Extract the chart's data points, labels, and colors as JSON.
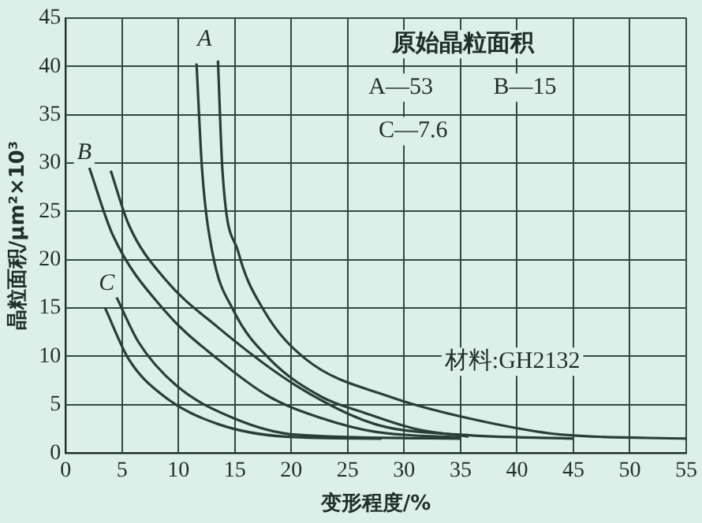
{
  "chart_data": {
    "type": "line",
    "xlabel": "变形程度/%",
    "ylabel": "晶粒面积/μm²×10³",
    "xlim": [
      0,
      55
    ],
    "xticks": [
      0,
      5,
      10,
      15,
      20,
      25,
      30,
      35,
      40,
      45,
      50,
      55
    ],
    "ylim": [
      0,
      45
    ],
    "yticks": [
      0,
      5,
      10,
      15,
      20,
      25,
      30,
      35,
      40,
      45
    ],
    "grid": true,
    "legend": false,
    "marker": "none",
    "line_style": "solid",
    "series": [
      {
        "color": "#2a3d36",
        "x": [
          11.6,
          12.1,
          13.0,
          14.9,
          18.1,
          22.7,
          26.4,
          31,
          35.7
        ],
        "values": [
          40.3,
          29.2,
          20.8,
          14.7,
          9.7,
          5.8,
          4.2,
          2.5,
          1.7
        ]
      },
      {
        "color": "#2a3d36",
        "x": [
          13.5,
          13.9,
          15.3,
          17.6,
          21.3,
          28.8,
          35.7,
          44,
          55
        ],
        "values": [
          40.6,
          29.2,
          20.8,
          14.7,
          9.7,
          5.8,
          3.6,
          1.9,
          1.5
        ]
      },
      {
        "color": "#2a3d36",
        "x": [
          2.1,
          4.2,
          8.8,
          13.5,
          18.1,
          22.7,
          27.4,
          35
        ],
        "values": [
          29.5,
          22.5,
          14.7,
          9.7,
          5.8,
          3.6,
          2.2,
          1.6
        ]
      },
      {
        "color": "#2a3d36",
        "x": [
          4.0,
          5.6,
          8.8,
          13.5,
          20.4,
          27.4,
          35,
          45
        ],
        "values": [
          29.2,
          23.6,
          18,
          13,
          7.0,
          3.0,
          1.9,
          1.5
        ]
      },
      {
        "color": "#2a3d36",
        "x": [
          3.5,
          5.6,
          8.8,
          13.5,
          19.5,
          28
        ],
        "values": [
          15,
          9.7,
          5.8,
          3.0,
          1.7,
          1.5
        ]
      },
      {
        "color": "#2a3d36",
        "x": [
          4.4,
          6.5,
          9.8,
          14.9,
          20.4,
          35
        ],
        "values": [
          16.4,
          11.4,
          7,
          3.6,
          1.9,
          1.5
        ]
      }
    ],
    "annotations": [
      "原始晶粒面积",
      "A—53",
      "B—15",
      "C—7.6",
      "材料:GH2132",
      "A",
      "B",
      "C"
    ]
  }
}
